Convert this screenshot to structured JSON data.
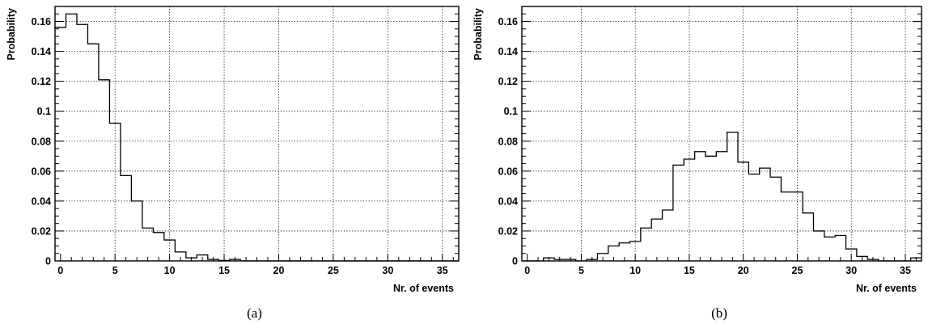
{
  "chart_data": [
    {
      "type": "histogram",
      "caption": "(a)",
      "xlabel": "Nr. of events",
      "ylabel": "Probability",
      "xlim": [
        -0.5,
        36.5
      ],
      "ylim": [
        0,
        0.17
      ],
      "xticks": [
        0,
        5,
        10,
        15,
        20,
        25,
        30,
        35
      ],
      "yticks": [
        0,
        0.02,
        0.04,
        0.06,
        0.08,
        0.1,
        0.12,
        0.14,
        0.16
      ],
      "ytick_labels": [
        "0",
        "0.02",
        "0.04",
        "0.06",
        "0.08",
        "0.1",
        "0.12",
        "0.14",
        "0.16"
      ],
      "grid": true,
      "bin_width": 1,
      "x": [
        0,
        1,
        2,
        3,
        4,
        5,
        6,
        7,
        8,
        9,
        10,
        11,
        12,
        13,
        14,
        15,
        16,
        17,
        18,
        19,
        20,
        21,
        22,
        23,
        24,
        25,
        26,
        27,
        28,
        29,
        30,
        31,
        32,
        33,
        34,
        35,
        36
      ],
      "values": [
        0.156,
        0.165,
        0.158,
        0.145,
        0.121,
        0.092,
        0.057,
        0.04,
        0.022,
        0.019,
        0.014,
        0.006,
        0.002,
        0.004,
        0.001,
        0.0003,
        0.001,
        0,
        0,
        0,
        0,
        0,
        0,
        0,
        0,
        0,
        0,
        0,
        0,
        0,
        0,
        0,
        0,
        0,
        0,
        0,
        0
      ]
    },
    {
      "type": "histogram",
      "caption": "(b)",
      "xlabel": "Nr. of events",
      "ylabel": "Probability",
      "xlim": [
        -0.5,
        36.5
      ],
      "ylim": [
        0,
        0.17
      ],
      "xticks": [
        0,
        5,
        10,
        15,
        20,
        25,
        30,
        35
      ],
      "yticks": [
        0,
        0.02,
        0.04,
        0.06,
        0.08,
        0.1,
        0.12,
        0.14,
        0.16
      ],
      "ytick_labels": [
        "0",
        "0.02",
        "0.04",
        "0.06",
        "0.08",
        "0.1",
        "0.12",
        "0.14",
        "0.16"
      ],
      "grid": true,
      "bin_width": 1,
      "x": [
        0,
        1,
        2,
        3,
        4,
        5,
        6,
        7,
        8,
        9,
        10,
        11,
        12,
        13,
        14,
        15,
        16,
        17,
        18,
        19,
        20,
        21,
        22,
        23,
        24,
        25,
        26,
        27,
        28,
        29,
        30,
        31,
        32,
        33,
        34,
        35,
        36
      ],
      "values": [
        0,
        0,
        0.002,
        0.001,
        0.001,
        0,
        0.001,
        0.005,
        0.01,
        0.012,
        0.013,
        0.022,
        0.028,
        0.034,
        0.064,
        0.068,
        0.073,
        0.07,
        0.073,
        0.086,
        0.066,
        0.058,
        0.062,
        0.056,
        0.046,
        0.046,
        0.032,
        0.02,
        0.016,
        0.017,
        0.008,
        0.003,
        0.001,
        0,
        0,
        0,
        0.002
      ]
    }
  ]
}
